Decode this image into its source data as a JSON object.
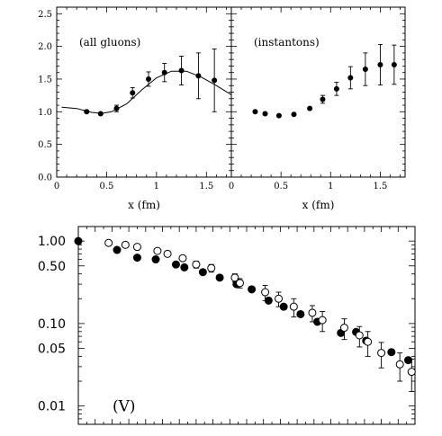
{
  "chart_data": [
    {
      "type": "scatter",
      "panel": "top-left",
      "annotation": "(all gluons)",
      "xlabel": "x  (fm)",
      "xlim": [
        0,
        1.75
      ],
      "ylim": [
        0,
        2.6
      ],
      "xticks": [
        "0",
        "0.5",
        "1",
        "1.5"
      ],
      "yticks": [
        "0.0",
        "0.5",
        "1.0",
        "1.5",
        "2.0",
        "2.5"
      ],
      "points": [
        {
          "x": 0.3,
          "y": 1.0,
          "err": 0.02
        },
        {
          "x": 0.44,
          "y": 0.97,
          "err": 0.03
        },
        {
          "x": 0.6,
          "y": 1.05,
          "err": 0.05
        },
        {
          "x": 0.76,
          "y": 1.29,
          "err": 0.08
        },
        {
          "x": 0.92,
          "y": 1.5,
          "err": 0.11
        },
        {
          "x": 1.08,
          "y": 1.6,
          "err": 0.14
        },
        {
          "x": 1.25,
          "y": 1.63,
          "err": 0.22
        },
        {
          "x": 1.42,
          "y": 1.55,
          "err": 0.35
        },
        {
          "x": 1.58,
          "y": 1.48,
          "err": 0.48
        }
      ],
      "fit_curve": [
        [
          0.05,
          1.07
        ],
        [
          0.2,
          1.05
        ],
        [
          0.35,
          0.99
        ],
        [
          0.45,
          0.975
        ],
        [
          0.55,
          1.0
        ],
        [
          0.7,
          1.12
        ],
        [
          0.85,
          1.33
        ],
        [
          1.0,
          1.52
        ],
        [
          1.15,
          1.62
        ],
        [
          1.3,
          1.62
        ],
        [
          1.45,
          1.53
        ],
        [
          1.6,
          1.4
        ],
        [
          1.75,
          1.26
        ]
      ]
    },
    {
      "type": "scatter",
      "panel": "top-right",
      "annotation": "(instantons)",
      "xlabel": "x  (fm)",
      "xlim": [
        0,
        1.75
      ],
      "ylim": [
        0,
        2.6
      ],
      "xticks": [
        "0",
        "0.5",
        "1",
        "1.5"
      ],
      "points": [
        {
          "x": 0.24,
          "y": 1.0,
          "err": 0.02
        },
        {
          "x": 0.34,
          "y": 0.97,
          "err": 0.02
        },
        {
          "x": 0.48,
          "y": 0.94,
          "err": 0.02
        },
        {
          "x": 0.63,
          "y": 0.96,
          "err": 0.02
        },
        {
          "x": 0.79,
          "y": 1.05,
          "err": 0.03
        },
        {
          "x": 0.92,
          "y": 1.19,
          "err": 0.06
        },
        {
          "x": 1.06,
          "y": 1.35,
          "err": 0.1
        },
        {
          "x": 1.2,
          "y": 1.52,
          "err": 0.17
        },
        {
          "x": 1.35,
          "y": 1.65,
          "err": 0.25
        },
        {
          "x": 1.5,
          "y": 1.72,
          "err": 0.31
        },
        {
          "x": 1.64,
          "y": 1.72,
          "err": 0.3
        }
      ]
    },
    {
      "type": "scatter",
      "panel": "bottom",
      "annotation": "(V)",
      "yscale": "log",
      "ylim": [
        0.006,
        1.5
      ],
      "yticks": [
        "1.00",
        "0.50",
        "0.10",
        "0.05",
        "0.01"
      ],
      "ytick_values": [
        1.0,
        0.5,
        0.1,
        0.05,
        0.01
      ],
      "xlim": [
        0,
        20
      ],
      "series": [
        {
          "marker": "filled",
          "points": [
            {
              "x": 0.0,
              "y": 1.0,
              "err": 0
            },
            {
              "x": 2.3,
              "y": 0.78,
              "err": 0
            },
            {
              "x": 3.5,
              "y": 0.63,
              "err": 0
            },
            {
              "x": 4.6,
              "y": 0.6,
              "err": 0
            },
            {
              "x": 5.8,
              "y": 0.52,
              "err": 0
            },
            {
              "x": 6.3,
              "y": 0.48,
              "err": 0
            },
            {
              "x": 7.4,
              "y": 0.42,
              "err": 0
            },
            {
              "x": 8.4,
              "y": 0.36,
              "err": 0
            },
            {
              "x": 9.4,
              "y": 0.3,
              "err": 0
            },
            {
              "x": 10.3,
              "y": 0.26,
              "err": 0
            },
            {
              "x": 11.3,
              "y": 0.19,
              "err": 0
            },
            {
              "x": 12.2,
              "y": 0.16,
              "err": 0
            },
            {
              "x": 13.2,
              "y": 0.13,
              "err": 0
            },
            {
              "x": 14.2,
              "y": 0.105,
              "err": 0
            },
            {
              "x": 15.6,
              "y": 0.077,
              "err": 0
            },
            {
              "x": 16.5,
              "y": 0.079,
              "err": 0
            },
            {
              "x": 17.1,
              "y": 0.062,
              "err": 0
            },
            {
              "x": 18.6,
              "y": 0.045,
              "err": 0
            },
            {
              "x": 19.6,
              "y": 0.036,
              "err": 0
            }
          ]
        },
        {
          "marker": "open",
          "points": [
            {
              "x": 1.8,
              "y": 0.95,
              "err": 0.03
            },
            {
              "x": 2.8,
              "y": 0.9,
              "err": 0.03
            },
            {
              "x": 3.5,
              "y": 0.85,
              "err": 0.03
            },
            {
              "x": 4.7,
              "y": 0.76,
              "err": 0.04
            },
            {
              "x": 5.3,
              "y": 0.7,
              "err": 0.04
            },
            {
              "x": 6.2,
              "y": 0.62,
              "err": 0.04
            },
            {
              "x": 7.0,
              "y": 0.52,
              "err": 0.05
            },
            {
              "x": 7.9,
              "y": 0.47,
              "err": 0.05
            },
            {
              "x": 9.3,
              "y": 0.36,
              "err": 0.04
            },
            {
              "x": 9.6,
              "y": 0.31,
              "err": 0.04
            },
            {
              "x": 11.1,
              "y": 0.24,
              "err": 0.05
            },
            {
              "x": 11.9,
              "y": 0.2,
              "err": 0.04
            },
            {
              "x": 12.8,
              "y": 0.16,
              "err": 0.04
            },
            {
              "x": 13.9,
              "y": 0.135,
              "err": 0.03
            },
            {
              "x": 14.5,
              "y": 0.11,
              "err": 0.03
            },
            {
              "x": 15.8,
              "y": 0.089,
              "err": 0.025
            },
            {
              "x": 16.7,
              "y": 0.072,
              "err": 0.02
            },
            {
              "x": 17.2,
              "y": 0.06,
              "err": 0.02
            },
            {
              "x": 18.0,
              "y": 0.044,
              "err": 0.015
            },
            {
              "x": 19.1,
              "y": 0.032,
              "err": 0.012
            },
            {
              "x": 19.8,
              "y": 0.026,
              "err": 0.011
            }
          ]
        }
      ]
    }
  ]
}
